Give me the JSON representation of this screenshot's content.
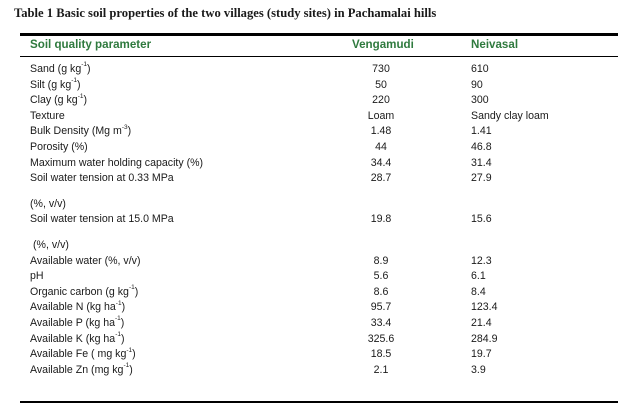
{
  "caption": "Table 1 Basic soil properties of the two villages (study sites) in Pachamalai hills",
  "headers": {
    "param": "Soil quality parameter",
    "v1": "Vengamudi",
    "v2": "Neivasal"
  },
  "rows": [
    {
      "param": "Sand (g kg",
      "sup": "-1",
      "close": ")",
      "v1": "730",
      "v2": "610"
    },
    {
      "param": "Silt (g kg",
      "sup": "-1",
      "close": ")",
      "v1": "50",
      "v2": "90"
    },
    {
      "param": "Clay  (g kg",
      "sup": "-1",
      "close": ")",
      "v1": "220",
      "v2": "300"
    },
    {
      "param": "Texture",
      "v1": "Loam",
      "v2": "Sandy clay loam"
    },
    {
      "param": "Bulk Density (Mg m",
      "sup": "-3",
      "close": ")",
      "v1": "1.48",
      "v2": "1.41"
    },
    {
      "param": "Porosity (%)",
      "v1": "44",
      "v2": "46.8"
    },
    {
      "param": "Maximum water holding capacity (%)",
      "v1": "34.4",
      "v2": "31.4"
    },
    {
      "param": "Soil water tension at 0.33 MPa",
      "v1": "28.7",
      "v2": "27.9"
    },
    {
      "spacer": true
    },
    {
      "param": "(%, v/v)",
      "v1": "",
      "v2": ""
    },
    {
      "param": "Soil water tension at 15.0 MPa",
      "v1": "19.8",
      "v2": "15.6"
    },
    {
      "spacer": true
    },
    {
      "param": "(%, v/v)",
      "indent": true,
      "v1": "",
      "v2": ""
    },
    {
      "param": "Available water (%, v/v)",
      "v1": "8.9",
      "v2": "12.3"
    },
    {
      "param": "pH",
      "v1": "5.6",
      "v2": "6.1"
    },
    {
      "param": "Organic carbon (g kg",
      "sup": "-1",
      "close": ")",
      "v1": "8.6",
      "v2": "8.4"
    },
    {
      "param": "Available N (kg ha",
      "sup": "-1",
      "close": ")",
      "v1": "95.7",
      "v2": "123.4"
    },
    {
      "param": "Available P (kg ha",
      "sup": "-1",
      "close": ")",
      "v1": "33.4",
      "v2": "21.4"
    },
    {
      "param": "Available K (kg ha",
      "sup": "-1",
      "close": ")",
      "v1": "325.6",
      "v2": "284.9"
    },
    {
      "param": "Available Fe ( mg kg",
      "sup": "-1",
      "close": ")",
      "v1": "18.5",
      "v2": "19.7"
    },
    {
      "param": "Available Zn (mg kg",
      "sup": "-1",
      "close": ")",
      "v1": "2.1",
      "v2": "3.9"
    }
  ],
  "colors": {
    "header_text": "#2f7a3e",
    "rule": "#000000",
    "text": "#1a1a1a"
  }
}
